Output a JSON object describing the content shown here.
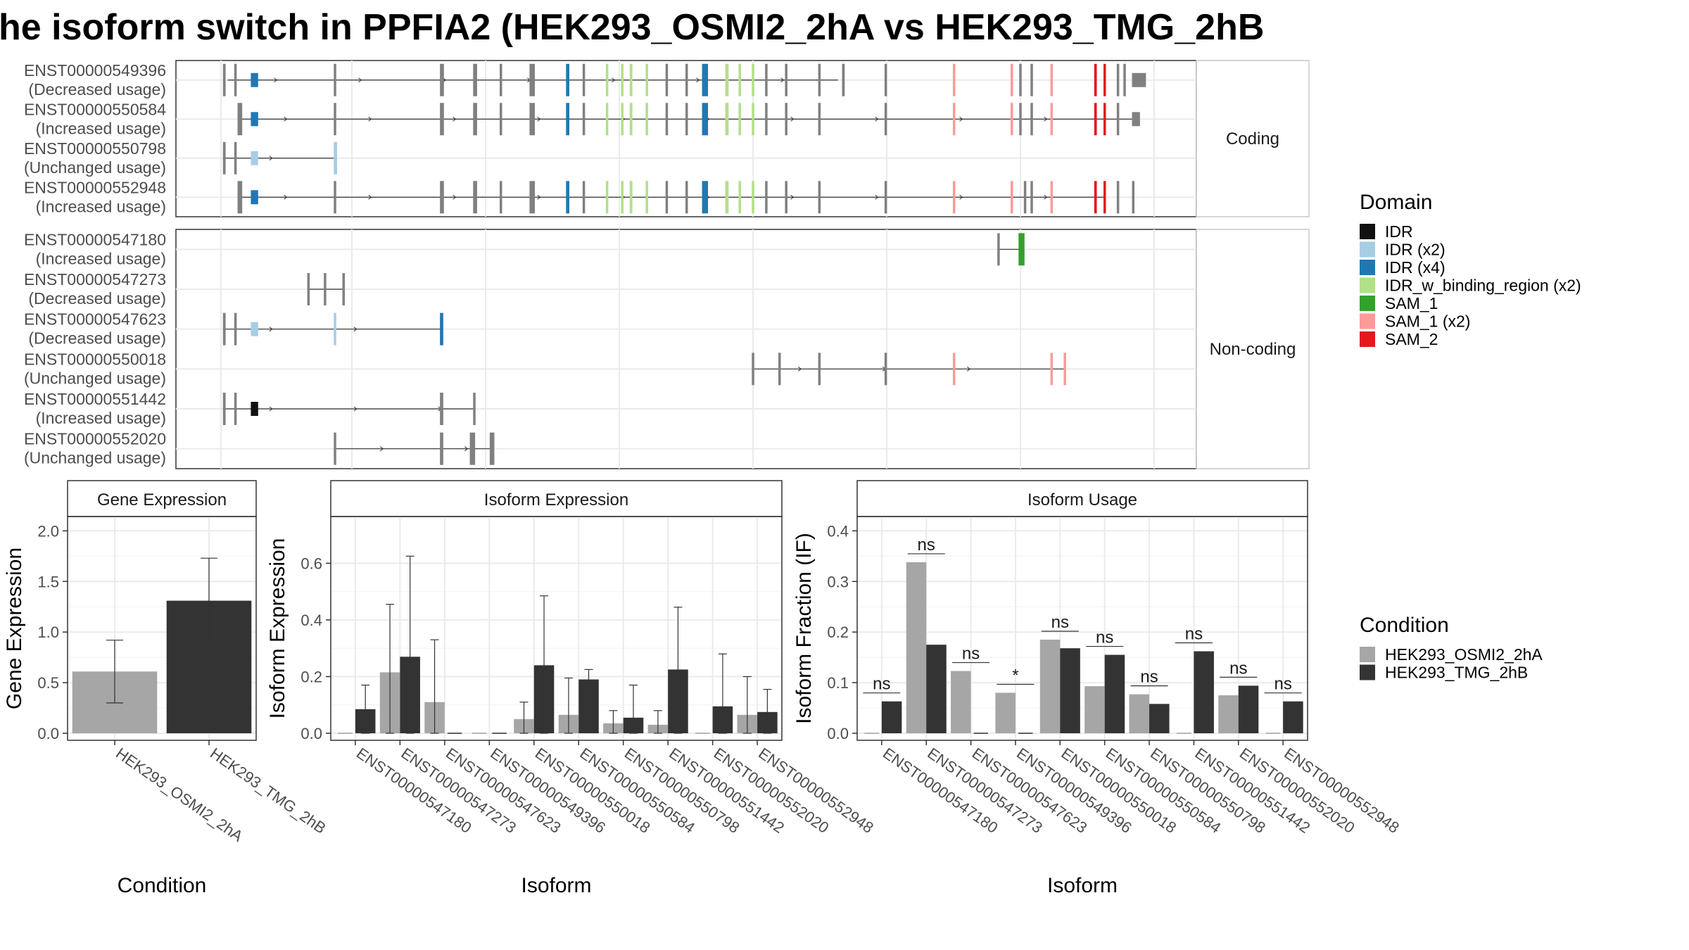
{
  "title": "he isoform switch in PPFIA2 (HEK293_OSMI2_2hA vs HEK293_TMG_2hB",
  "colors": {
    "IDR": "#111111",
    "IDR (x2)": "#a6cee3",
    "IDR (x4)": "#1f78b4",
    "IDR_w_binding_region (x2)": "#b2df8a",
    "SAM_1": "#33a02c",
    "SAM_1 (x2)": "#fb9a99",
    "SAM_2": "#e31a1c",
    "exon": "#808080",
    "cond_a": "#a6a6a6",
    "cond_b": "#333333"
  },
  "structure": {
    "facets": [
      "Coding",
      "Non-coding"
    ],
    "x_range": [
      0,
      100
    ],
    "coding": [
      {
        "id": "ENST00000549396",
        "usage": "(Decreased usage)",
        "introns": [
          [
            1,
            93
          ]
        ],
        "exons": [
          [
            0.3,
            0.7
          ],
          [
            2,
            2.3
          ],
          [
            4.5,
            5.6
          ],
          [
            17,
            17.3
          ],
          [
            33,
            33.6
          ],
          [
            38,
            38.6
          ],
          [
            42,
            42.3
          ],
          [
            46.5,
            47.3
          ],
          [
            52,
            52.5
          ],
          [
            54.5,
            54.8
          ],
          [
            58,
            58.3
          ],
          [
            60.3,
            60.6
          ],
          [
            61.6,
            62
          ],
          [
            64,
            64.3
          ],
          [
            67,
            67.3
          ],
          [
            70,
            70.3
          ],
          [
            72.5,
            73.4
          ],
          [
            76,
            76.5
          ],
          [
            78,
            78.3
          ],
          [
            80,
            80.3
          ],
          [
            82,
            82.3
          ],
          [
            85,
            85.3
          ],
          [
            90,
            90.3
          ],
          [
            93.6,
            94
          ],
          [
            100,
            100.3
          ],
          [
            110.3,
            110.6
          ],
          [
            119,
            119.3
          ],
          [
            120.3,
            120.6
          ],
          [
            122,
            122.3
          ],
          [
            125,
            125.3
          ],
          [
            131.6,
            132
          ],
          [
            133,
            133.3
          ],
          [
            135,
            135.3
          ],
          [
            136,
            136.3
          ],
          [
            137.3,
            139.4
          ]
        ]
      },
      {
        "id": "ENST00000550584",
        "usage": "(Increased usage)",
        "introns": [
          [
            2.5,
            138
          ]
        ],
        "exons": [
          [
            2.5,
            3.2
          ],
          [
            4.5,
            5.6
          ],
          [
            17,
            17.3
          ],
          [
            33,
            33.6
          ],
          [
            38,
            38.6
          ],
          [
            42,
            42.3
          ],
          [
            46.5,
            47.3
          ],
          [
            52,
            52.5
          ],
          [
            54.5,
            54.8
          ],
          [
            58,
            58.3
          ],
          [
            60.3,
            60.6
          ],
          [
            61.6,
            62
          ],
          [
            64,
            64.3
          ],
          [
            67,
            67.3
          ],
          [
            70,
            70.3
          ],
          [
            72.5,
            73.4
          ],
          [
            76,
            76.5
          ],
          [
            78,
            78.3
          ],
          [
            80,
            80.3
          ],
          [
            82,
            82.3
          ],
          [
            85,
            85.3
          ],
          [
            90,
            90.3
          ],
          [
            100,
            100.3
          ],
          [
            110.3,
            110.6
          ],
          [
            119,
            119.3
          ],
          [
            120.3,
            120.6
          ],
          [
            122,
            122.3
          ],
          [
            125,
            125.3
          ],
          [
            131.6,
            132
          ],
          [
            133,
            133.3
          ],
          [
            135,
            135.3
          ],
          [
            137.3,
            138.5
          ]
        ]
      },
      {
        "id": "ENST00000550798",
        "usage": "(Unchanged usage)",
        "introns": [
          [
            0.3,
            17
          ]
        ],
        "exons": [
          [
            0.3,
            0.7
          ],
          [
            2,
            2.3
          ],
          [
            4.5,
            5.6
          ],
          [
            17,
            17.5
          ]
        ]
      },
      {
        "id": "ENST00000552948",
        "usage": "(Increased usage)",
        "introns": [
          [
            2.5,
            133
          ]
        ],
        "exons": [
          [
            2.5,
            3.2
          ],
          [
            4.5,
            5.6
          ],
          [
            17,
            17.3
          ],
          [
            33,
            33.6
          ],
          [
            38,
            38.6
          ],
          [
            42,
            42.3
          ],
          [
            46.5,
            47.3
          ],
          [
            52,
            52.5
          ],
          [
            54.5,
            54.8
          ],
          [
            58,
            58.3
          ],
          [
            60.3,
            60.6
          ],
          [
            61.6,
            62
          ],
          [
            64,
            64.3
          ],
          [
            67,
            67.3
          ],
          [
            70,
            70.3
          ],
          [
            72.5,
            73.4
          ],
          [
            76,
            76.5
          ],
          [
            78,
            78.3
          ],
          [
            80,
            80.3
          ],
          [
            82,
            82.3
          ],
          [
            85,
            85.3
          ],
          [
            90,
            90.3
          ],
          [
            100,
            100.3
          ],
          [
            110.3,
            110.6
          ],
          [
            119,
            119.3
          ],
          [
            121,
            121.3
          ],
          [
            122,
            122.3
          ],
          [
            125,
            125.3
          ],
          [
            131.6,
            132
          ],
          [
            133,
            133.3
          ],
          [
            135,
            135.3
          ],
          [
            137.3,
            137.6
          ]
        ]
      }
    ],
    "noncoding": [
      {
        "id": "ENST00000547180",
        "usage": "(Increased usage)",
        "introns": [
          [
            117,
            121
          ]
        ],
        "exons": [
          [
            117,
            117.3
          ],
          [
            120.2,
            121.1
          ]
        ]
      },
      {
        "id": "ENST00000547273",
        "usage": "(Decreased usage)",
        "introns": [
          [
            13,
            18.5
          ]
        ],
        "exons": [
          [
            13,
            13.3
          ],
          [
            15.5,
            15.8
          ],
          [
            18.3,
            18.6
          ]
        ]
      },
      {
        "id": "ENST00000547623",
        "usage": "(Decreased usage)",
        "introns": [
          [
            0.3,
            33.5
          ]
        ],
        "exons": [
          [
            0.3,
            0.7
          ],
          [
            2,
            2.3
          ],
          [
            4.5,
            5.6
          ],
          [
            17,
            17.3
          ],
          [
            33,
            33.5
          ]
        ]
      },
      {
        "id": "ENST00000550018",
        "usage": "(Unchanged usage)",
        "introns": [
          [
            80,
            127
          ]
        ],
        "exons": [
          [
            80,
            80.3
          ],
          [
            84,
            84.3
          ],
          [
            90,
            90.3
          ],
          [
            100,
            100.3
          ],
          [
            110.3,
            110.6
          ],
          [
            125,
            125.3
          ],
          [
            127,
            127.3
          ]
        ]
      },
      {
        "id": "ENST00000551442",
        "usage": "(Increased usage)",
        "introns": [
          [
            0.3,
            38
          ]
        ],
        "exons": [
          [
            0.3,
            0.7
          ],
          [
            2,
            2.3
          ],
          [
            4.5,
            5.6
          ],
          [
            33,
            33.5
          ],
          [
            38,
            38.3
          ]
        ]
      },
      {
        "id": "ENST00000552020",
        "usage": "(Unchanged usage)",
        "introns": [
          [
            17,
            41
          ]
        ],
        "exons": [
          [
            17,
            17.3
          ],
          [
            33,
            33.5
          ],
          [
            37.5,
            38.3
          ],
          [
            40.5,
            41.2
          ]
        ]
      }
    ]
  },
  "chart_data": [
    {
      "type": "bar",
      "title": "Gene Expression",
      "xlabel": "Condition",
      "ylabel": "Gene Expression",
      "ylim": [
        0,
        2.1
      ],
      "yticks": [
        "0.0",
        "0.5",
        "1.0",
        "1.5",
        "2.0"
      ],
      "categories": [
        "HEK293_OSMI2_2hA",
        "HEK293_TMG_2hB"
      ],
      "values": [
        0.61,
        1.31
      ],
      "errors": [
        [
          0.3,
          0.92
        ],
        [
          0.88,
          1.73
        ]
      ]
    },
    {
      "type": "bar",
      "title": "Isoform Expression",
      "xlabel": "Isoform",
      "ylabel": "Isoform Expression",
      "ylim": [
        0,
        0.75
      ],
      "yticks": [
        "0.0",
        "0.2",
        "0.4",
        "0.6"
      ],
      "categories": [
        "ENST00000547180",
        "ENST00000547273",
        "ENST00000547623",
        "ENST00000549396",
        "ENST00000550018",
        "ENST00000550584",
        "ENST00000550798",
        "ENST00000551442",
        "ENST00000552020",
        "ENST00000552948"
      ],
      "series": [
        {
          "name": "HEK293_OSMI2_2hA",
          "values": [
            0.0,
            0.215,
            0.11,
            0.0,
            0.05,
            0.065,
            0.035,
            0.03,
            0.0,
            0.065
          ],
          "errors": [
            null,
            [
              0,
              0.455
            ],
            [
              0,
              0.33
            ],
            null,
            [
              0,
              0.11
            ],
            [
              0,
              0.195
            ],
            [
              0,
              0.08
            ],
            [
              0,
              0.08
            ],
            null,
            [
              0,
              0.2
            ]
          ]
        },
        {
          "name": "HEK293_TMG_2hB",
          "values": [
            0.085,
            0.27,
            0.0,
            0.0,
            0.24,
            0.19,
            0.055,
            0.225,
            0.095,
            0.075
          ],
          "errors": [
            [
              0,
              0.17
            ],
            [
              0,
              0.625
            ],
            null,
            null,
            [
              0,
              0.485
            ],
            [
              0.15,
              0.225
            ],
            [
              0,
              0.17
            ],
            [
              0,
              0.445
            ],
            [
              0,
              0.28
            ],
            [
              0,
              0.155
            ]
          ]
        }
      ]
    },
    {
      "type": "bar",
      "title": "Isoform Usage",
      "xlabel": "Isoform",
      "ylabel": "Isoform Fraction (IF)",
      "ylim": [
        0,
        0.42
      ],
      "yticks": [
        "0.0",
        "0.1",
        "0.2",
        "0.3",
        "0.4"
      ],
      "categories": [
        "ENST00000547180",
        "ENST00000547273",
        "ENST00000547623",
        "ENST00000549396",
        "ENST00000550018",
        "ENST00000550584",
        "ENST00000550798",
        "ENST00000551442",
        "ENST00000552020",
        "ENST00000552948"
      ],
      "series": [
        {
          "name": "HEK293_OSMI2_2hA",
          "values": [
            0.0,
            0.338,
            0.123,
            0.08,
            0.185,
            0.093,
            0.077,
            0.0,
            0.075,
            0.0
          ]
        },
        {
          "name": "HEK293_TMG_2hB",
          "values": [
            0.063,
            0.175,
            0.0,
            0.0,
            0.168,
            0.155,
            0.058,
            0.162,
            0.094,
            0.063
          ]
        }
      ],
      "significance": [
        "ns",
        "ns",
        "ns",
        "*",
        "ns",
        "ns",
        "ns",
        "ns",
        "ns",
        "ns"
      ]
    }
  ],
  "legend_domain": {
    "title": "Domain",
    "items": [
      "IDR",
      "IDR (x2)",
      "IDR (x4)",
      "IDR_w_binding_region (x2)",
      "SAM_1",
      "SAM_1 (x2)",
      "SAM_2"
    ]
  },
  "legend_condition": {
    "title": "Condition",
    "items": [
      "HEK293_OSMI2_2hA",
      "HEK293_TMG_2hB"
    ]
  }
}
